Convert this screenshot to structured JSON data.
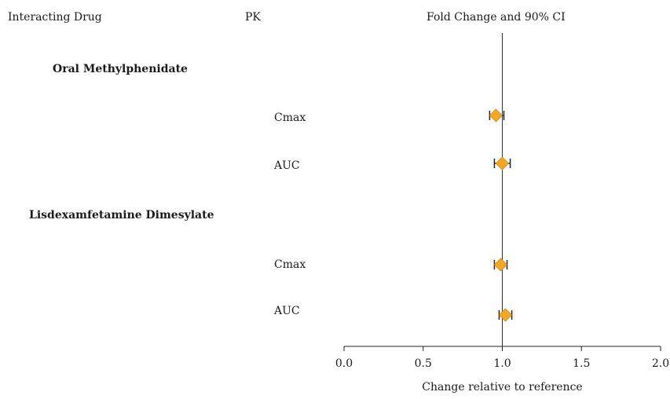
{
  "header": {
    "col_drug": "Interacting Drug",
    "col_pk": "PK",
    "col_effect": "Fold Change and 90% CI"
  },
  "chart_data": {
    "type": "forest",
    "xlabel": "Change relative to reference",
    "xlim": [
      0.0,
      2.0
    ],
    "xticks": [
      "0.0",
      "0.5",
      "1.0",
      "1.5",
      "2.0"
    ],
    "reference_line": 1.0,
    "marker_color": "#f5a623",
    "groups": [
      {
        "name": "Oral Methylphenidate",
        "rows": [
          {
            "label": "Cmax",
            "estimate": 0.96,
            "lower": 0.92,
            "upper": 1.01
          },
          {
            "label": "AUC",
            "estimate": 1.0,
            "lower": 0.95,
            "upper": 1.05
          }
        ]
      },
      {
        "name": "Lisdexamfetamine Dimesylate",
        "rows": [
          {
            "label": "Cmax",
            "estimate": 0.99,
            "lower": 0.95,
            "upper": 1.03
          },
          {
            "label": "AUC",
            "estimate": 1.02,
            "lower": 0.98,
            "upper": 1.06
          }
        ]
      }
    ]
  }
}
